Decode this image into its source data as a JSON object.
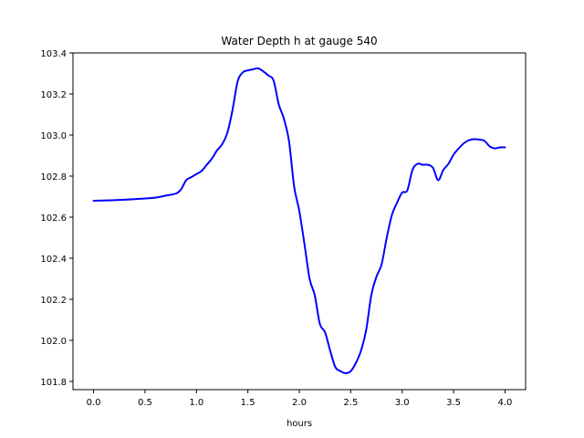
{
  "chart_data": {
    "type": "line",
    "title": "Water Depth h at gauge 540",
    "xlabel": "hours",
    "ylabel": "",
    "xlim": [
      -0.2,
      4.2
    ],
    "ylim": [
      101.76,
      103.4
    ],
    "xticks": [
      0.0,
      0.5,
      1.0,
      1.5,
      2.0,
      2.5,
      3.0,
      3.5,
      4.0
    ],
    "xtick_labels": [
      "0.0",
      "0.5",
      "1.0",
      "1.5",
      "2.0",
      "2.5",
      "3.0",
      "3.5",
      "4.0"
    ],
    "yticks": [
      101.8,
      102.0,
      102.2,
      102.4,
      102.6,
      102.8,
      103.0,
      103.2,
      103.4
    ],
    "ytick_labels": [
      "101.8",
      "102.0",
      "102.2",
      "102.4",
      "102.6",
      "102.8",
      "103.0",
      "103.2",
      "103.4"
    ],
    "grid": false,
    "series": [
      {
        "color": "#0000ff",
        "x": [
          0.0,
          0.2,
          0.4,
          0.6,
          0.7,
          0.8,
          0.85,
          0.9,
          0.95,
          1.0,
          1.05,
          1.1,
          1.15,
          1.2,
          1.25,
          1.3,
          1.35,
          1.4,
          1.45,
          1.5,
          1.55,
          1.6,
          1.65,
          1.7,
          1.75,
          1.8,
          1.85,
          1.9,
          1.95,
          2.0,
          2.05,
          2.1,
          2.15,
          2.2,
          2.25,
          2.3,
          2.35,
          2.4,
          2.45,
          2.5,
          2.55,
          2.6,
          2.65,
          2.7,
          2.75,
          2.8,
          2.85,
          2.9,
          2.95,
          3.0,
          3.05,
          3.1,
          3.15,
          3.2,
          3.25,
          3.3,
          3.35,
          3.4,
          3.45,
          3.5,
          3.55,
          3.6,
          3.65,
          3.7,
          3.75,
          3.8,
          3.85,
          3.9,
          3.95,
          4.0
        ],
        "values": [
          102.68,
          102.683,
          102.688,
          102.695,
          102.705,
          102.715,
          102.735,
          102.78,
          102.795,
          102.81,
          102.825,
          102.855,
          102.885,
          102.925,
          102.955,
          103.01,
          103.12,
          103.26,
          103.305,
          103.315,
          103.32,
          103.325,
          103.31,
          103.29,
          103.265,
          103.15,
          103.08,
          102.97,
          102.75,
          102.63,
          102.47,
          102.3,
          102.22,
          102.08,
          102.04,
          101.95,
          101.87,
          101.85,
          101.84,
          101.85,
          101.89,
          101.95,
          102.05,
          102.22,
          102.31,
          102.37,
          102.5,
          102.61,
          102.67,
          102.72,
          102.73,
          102.83,
          102.86,
          102.855,
          102.855,
          102.84,
          102.78,
          102.83,
          102.86,
          102.905,
          102.935,
          102.96,
          102.975,
          102.98,
          102.978,
          102.972,
          102.945,
          102.935,
          102.94,
          102.94
        ]
      }
    ]
  }
}
